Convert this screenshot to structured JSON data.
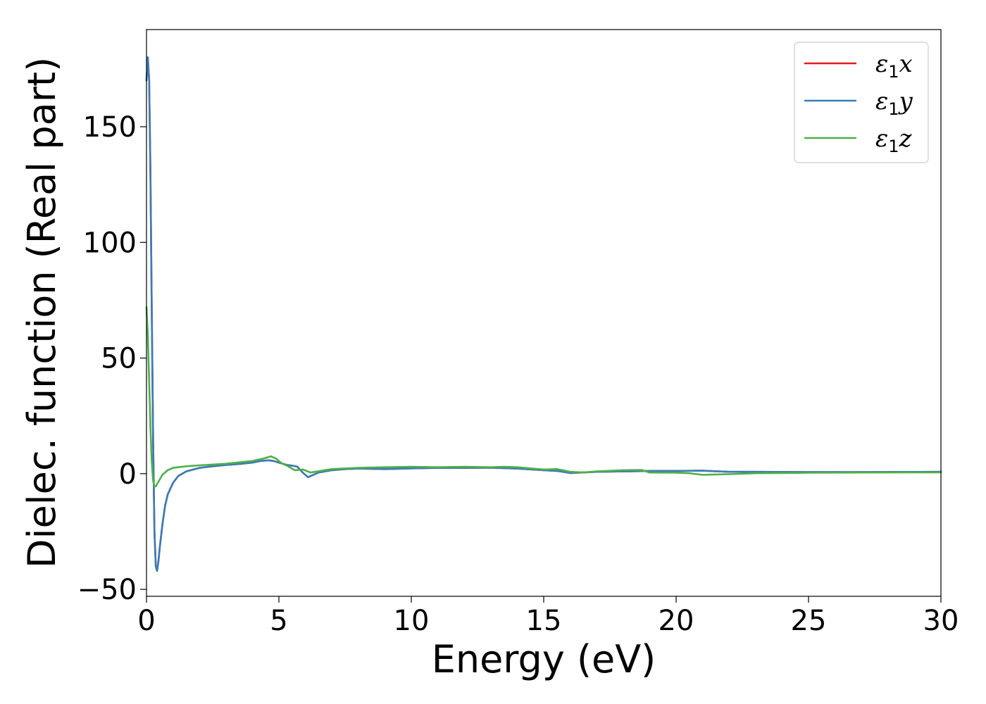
{
  "chart_data": {
    "type": "line",
    "title": "",
    "xlabel": "Energy (eV)",
    "ylabel": "Dielec. function (Real part)",
    "xlim": [
      0,
      30
    ],
    "ylim": [
      -53,
      192
    ],
    "xticks": [
      0,
      5,
      10,
      15,
      20,
      25,
      30
    ],
    "yticks": [
      -50,
      0,
      50,
      100,
      150
    ],
    "ytick_labels": [
      "−50",
      "0",
      "50",
      "100",
      "150"
    ],
    "grid": false,
    "legend_position": "top-right",
    "series": [
      {
        "name": "ε1x",
        "legend_base": "ε",
        "legend_sub": "1",
        "legend_tail": "x",
        "color": "#e41a1c",
        "x": [
          0.0,
          0.05,
          0.1,
          0.15,
          0.2,
          0.25,
          0.3,
          0.35,
          0.4,
          0.45,
          0.5,
          0.6,
          0.7,
          0.8,
          1.0,
          1.2,
          1.5,
          2.0,
          2.5,
          3.0,
          3.5,
          4.0,
          4.3,
          4.6,
          4.8,
          5.0,
          5.3,
          5.5,
          5.7,
          5.9,
          6.1,
          6.5,
          7.0,
          7.5,
          8.0,
          9.0,
          10.0,
          11.0,
          12.0,
          13.0,
          14.0,
          15.0,
          15.5,
          16.0,
          17.0,
          18.0,
          19.0,
          20.0,
          21.0,
          22.0,
          23.0,
          25.0,
          27.0,
          30.0
        ],
        "values": [
          170,
          180,
          170,
          130,
          70,
          15,
          -25,
          -40,
          -42,
          -38,
          -32,
          -22,
          -14,
          -9,
          -4,
          -1,
          1,
          2.5,
          3.2,
          3.8,
          4.2,
          4.8,
          5.5,
          5.8,
          5.5,
          4.8,
          3.8,
          3.5,
          3.0,
          0.5,
          -1.5,
          0.5,
          1.5,
          2.0,
          2.2,
          2.0,
          2.3,
          2.5,
          2.5,
          2.6,
          2.2,
          1.5,
          1.2,
          0.3,
          0.8,
          1.0,
          1.2,
          1.2,
          1.3,
          0.8,
          0.8,
          0.7,
          0.7,
          0.8
        ]
      },
      {
        "name": "ε1y",
        "legend_base": "ε",
        "legend_sub": "1",
        "legend_tail": "y",
        "color": "#377eb8",
        "x": [
          0.0,
          0.05,
          0.1,
          0.15,
          0.2,
          0.25,
          0.3,
          0.35,
          0.4,
          0.45,
          0.5,
          0.6,
          0.7,
          0.8,
          1.0,
          1.2,
          1.5,
          2.0,
          2.5,
          3.0,
          3.5,
          4.0,
          4.3,
          4.6,
          4.8,
          5.0,
          5.3,
          5.5,
          5.7,
          5.9,
          6.1,
          6.5,
          7.0,
          7.5,
          8.0,
          9.0,
          10.0,
          11.0,
          12.0,
          13.0,
          14.0,
          15.0,
          15.5,
          16.0,
          17.0,
          18.0,
          19.0,
          20.0,
          21.0,
          22.0,
          23.0,
          25.0,
          27.0,
          30.0
        ],
        "values": [
          170,
          180,
          170,
          130,
          70,
          15,
          -25,
          -40,
          -42,
          -38,
          -32,
          -22,
          -14,
          -9,
          -4,
          -1,
          1,
          2.5,
          3.2,
          3.8,
          4.2,
          4.8,
          5.5,
          5.8,
          5.5,
          4.8,
          3.8,
          3.5,
          3.0,
          0.5,
          -1.5,
          0.5,
          1.5,
          2.0,
          2.2,
          2.0,
          2.3,
          2.5,
          2.5,
          2.6,
          2.2,
          1.5,
          1.2,
          0.3,
          0.8,
          1.0,
          1.2,
          1.2,
          1.3,
          0.8,
          0.8,
          0.7,
          0.7,
          0.8
        ]
      },
      {
        "name": "ε1z",
        "legend_base": "ε",
        "legend_sub": "1",
        "legend_tail": "z",
        "color": "#4daf4a",
        "x": [
          0.0,
          0.05,
          0.1,
          0.15,
          0.2,
          0.25,
          0.3,
          0.35,
          0.4,
          0.5,
          0.6,
          0.8,
          1.0,
          1.5,
          2.0,
          3.0,
          4.0,
          4.4,
          4.7,
          4.9,
          5.1,
          5.3,
          5.6,
          5.9,
          6.2,
          7.0,
          8.0,
          9.0,
          10.0,
          11.0,
          12.0,
          13.0,
          13.5,
          14.0,
          15.0,
          15.5,
          16.0,
          16.5,
          17.0,
          18.0,
          18.7,
          19.0,
          20.0,
          20.5,
          21.0,
          22.0,
          23.0,
          25.0,
          27.0,
          30.0
        ],
        "values": [
          72,
          60,
          40,
          20,
          5,
          -3,
          -5.5,
          -5.5,
          -4.5,
          -2.5,
          -0.5,
          1.5,
          2.5,
          3.2,
          3.6,
          4.3,
          5.5,
          6.5,
          7.5,
          6.5,
          4.5,
          3.5,
          1.5,
          1.8,
          0.5,
          2.0,
          2.5,
          2.8,
          3.0,
          2.8,
          3.0,
          2.8,
          3.0,
          2.8,
          1.8,
          2.0,
          0.8,
          0.5,
          1.0,
          1.5,
          1.6,
          0.5,
          0.4,
          0.2,
          -0.5,
          -0.2,
          0.2,
          0.4,
          0.5,
          0.6
        ]
      }
    ]
  }
}
